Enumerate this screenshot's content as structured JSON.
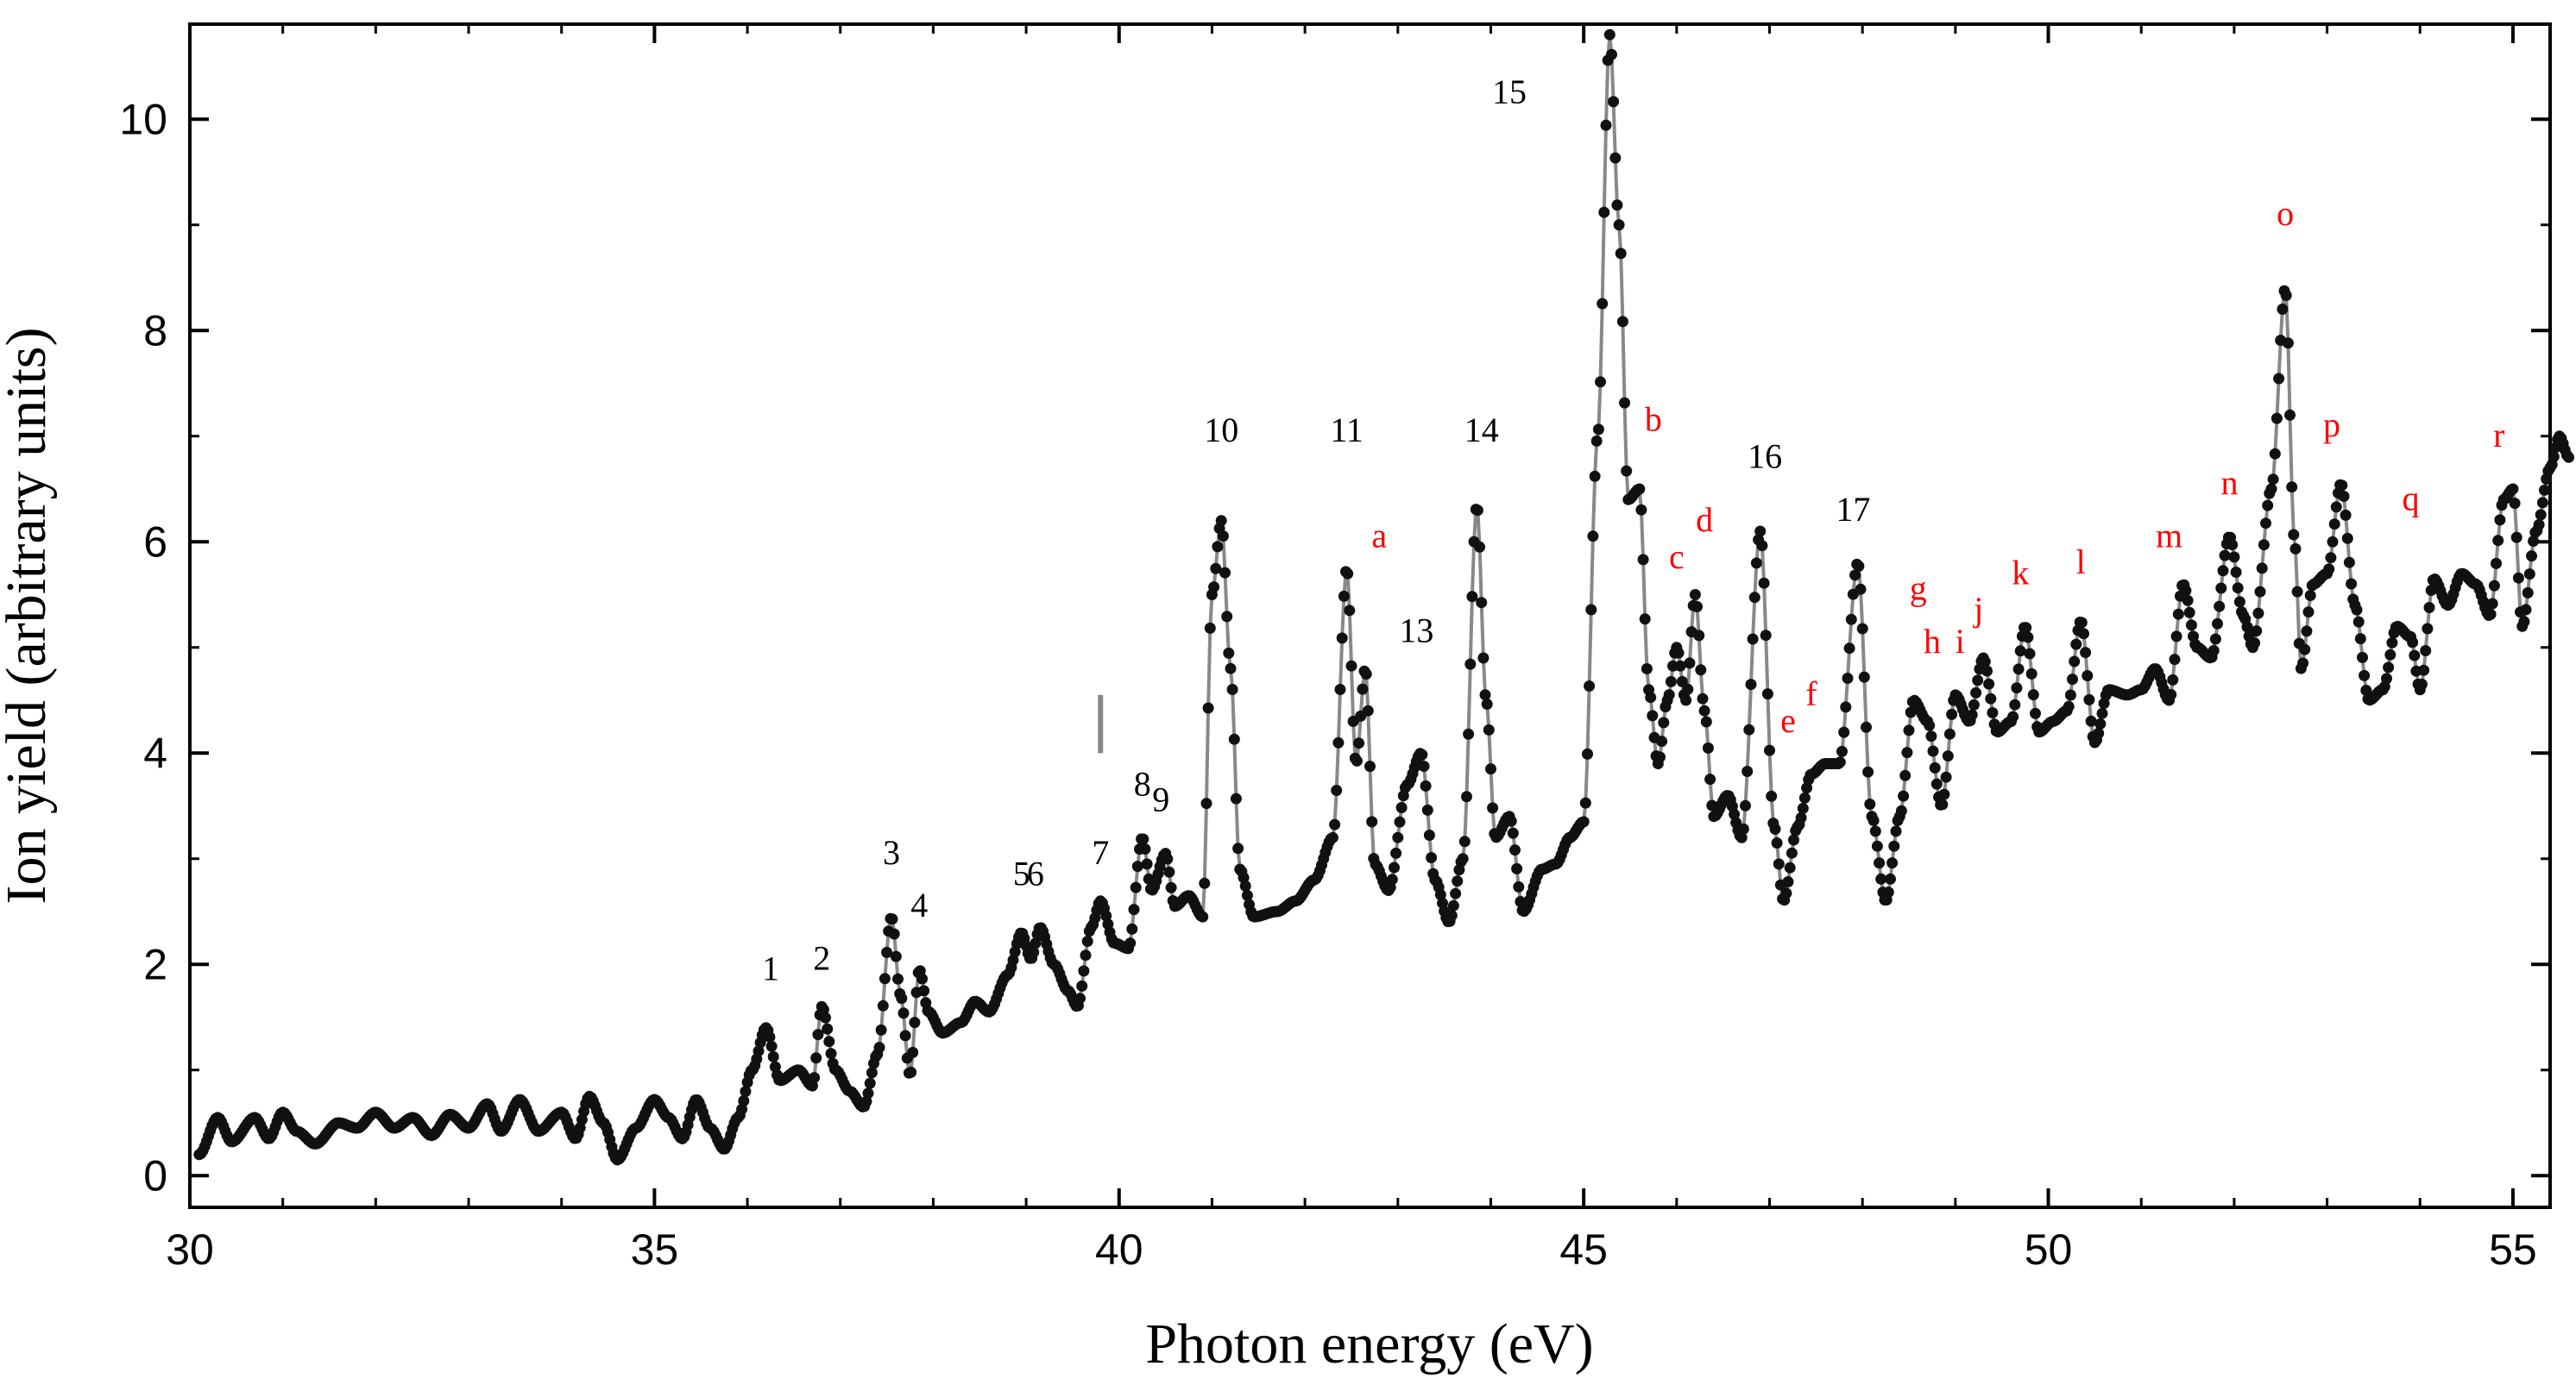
{
  "chart_data": {
    "type": "scatter",
    "xlabel": "Photon energy (eV)",
    "ylabel": "Ion yield (arbitrary units)",
    "xlim": [
      30,
      55.4
    ],
    "ylim": [
      -0.3,
      10.9
    ],
    "x_ticks": [
      30,
      35,
      40,
      45,
      50,
      55
    ],
    "y_ticks": [
      0,
      2,
      4,
      6,
      8,
      10
    ],
    "grid": false,
    "colors": {
      "markers": "#111111",
      "line": "#888888",
      "black_labels": "#000000",
      "red_labels": "#ff0000",
      "marker_line": "#888888"
    },
    "series": [
      {
        "name": "ion yield",
        "keypoints": [
          [
            30.1,
            0.2
          ],
          [
            30.3,
            0.55
          ],
          [
            30.45,
            0.32
          ],
          [
            30.7,
            0.55
          ],
          [
            30.85,
            0.35
          ],
          [
            31.0,
            0.6
          ],
          [
            31.15,
            0.42
          ],
          [
            31.35,
            0.3
          ],
          [
            31.6,
            0.5
          ],
          [
            31.8,
            0.45
          ],
          [
            32.0,
            0.6
          ],
          [
            32.2,
            0.45
          ],
          [
            32.4,
            0.55
          ],
          [
            32.6,
            0.38
          ],
          [
            32.8,
            0.58
          ],
          [
            33.0,
            0.45
          ],
          [
            33.2,
            0.68
          ],
          [
            33.35,
            0.42
          ],
          [
            33.55,
            0.72
          ],
          [
            33.75,
            0.42
          ],
          [
            34.0,
            0.6
          ],
          [
            34.15,
            0.35
          ],
          [
            34.3,
            0.75
          ],
          [
            34.45,
            0.5
          ],
          [
            34.6,
            0.15
          ],
          [
            34.8,
            0.45
          ],
          [
            35.0,
            0.72
          ],
          [
            35.15,
            0.55
          ],
          [
            35.3,
            0.35
          ],
          [
            35.45,
            0.72
          ],
          [
            35.6,
            0.45
          ],
          [
            35.75,
            0.25
          ],
          [
            35.9,
            0.55
          ],
          [
            36.05,
            1.0
          ],
          [
            36.2,
            1.4
          ],
          [
            36.35,
            0.9
          ],
          [
            36.55,
            1.0
          ],
          [
            36.7,
            0.85
          ],
          [
            36.8,
            1.6
          ],
          [
            36.95,
            1.0
          ],
          [
            37.1,
            0.8
          ],
          [
            37.25,
            0.65
          ],
          [
            37.4,
            1.15
          ],
          [
            37.55,
            2.45
          ],
          [
            37.65,
            1.7
          ],
          [
            37.75,
            0.95
          ],
          [
            37.85,
            1.95
          ],
          [
            37.95,
            1.55
          ],
          [
            38.1,
            1.35
          ],
          [
            38.3,
            1.45
          ],
          [
            38.45,
            1.65
          ],
          [
            38.6,
            1.55
          ],
          [
            38.8,
            1.9
          ],
          [
            38.95,
            2.3
          ],
          [
            39.05,
            2.05
          ],
          [
            39.15,
            2.35
          ],
          [
            39.3,
            2.0
          ],
          [
            39.45,
            1.75
          ],
          [
            39.55,
            1.6
          ],
          [
            39.7,
            2.35
          ],
          [
            39.8,
            2.6
          ],
          [
            39.95,
            2.2
          ],
          [
            40.1,
            2.15
          ],
          [
            40.25,
            3.2
          ],
          [
            40.35,
            2.7
          ],
          [
            40.5,
            3.05
          ],
          [
            40.6,
            2.55
          ],
          [
            40.75,
            2.65
          ],
          [
            40.9,
            2.45
          ],
          [
            41.0,
            5.5
          ],
          [
            41.1,
            6.2
          ],
          [
            41.2,
            4.8
          ],
          [
            41.3,
            2.9
          ],
          [
            41.45,
            2.45
          ],
          [
            41.7,
            2.5
          ],
          [
            41.9,
            2.6
          ],
          [
            42.1,
            2.8
          ],
          [
            42.3,
            3.2
          ],
          [
            42.45,
            5.75
          ],
          [
            42.55,
            3.9
          ],
          [
            42.65,
            4.8
          ],
          [
            42.75,
            2.95
          ],
          [
            42.9,
            2.7
          ],
          [
            43.1,
            3.7
          ],
          [
            43.25,
            4.0
          ],
          [
            43.4,
            2.8
          ],
          [
            43.55,
            2.4
          ],
          [
            43.7,
            3.0
          ],
          [
            43.85,
            6.35
          ],
          [
            43.95,
            4.5
          ],
          [
            44.05,
            3.2
          ],
          [
            44.2,
            3.4
          ],
          [
            44.35,
            2.5
          ],
          [
            44.55,
            2.9
          ],
          [
            44.7,
            2.95
          ],
          [
            44.85,
            3.2
          ],
          [
            45.0,
            3.35
          ],
          [
            45.15,
            7.0
          ],
          [
            45.28,
            10.8
          ],
          [
            45.38,
            9.0
          ],
          [
            45.48,
            6.4
          ],
          [
            45.6,
            6.5
          ],
          [
            45.7,
            4.6
          ],
          [
            45.8,
            3.9
          ],
          [
            45.9,
            4.5
          ],
          [
            46.0,
            5.0
          ],
          [
            46.1,
            4.5
          ],
          [
            46.2,
            5.5
          ],
          [
            46.3,
            4.4
          ],
          [
            46.4,
            3.4
          ],
          [
            46.55,
            3.6
          ],
          [
            46.7,
            3.2
          ],
          [
            46.9,
            6.1
          ],
          [
            47.05,
            3.3
          ],
          [
            47.15,
            2.6
          ],
          [
            47.3,
            3.3
          ],
          [
            47.45,
            3.8
          ],
          [
            47.6,
            3.9
          ],
          [
            47.75,
            3.9
          ],
          [
            47.95,
            5.8
          ],
          [
            48.1,
            3.4
          ],
          [
            48.25,
            2.6
          ],
          [
            48.4,
            3.4
          ],
          [
            48.55,
            4.5
          ],
          [
            48.7,
            4.3
          ],
          [
            48.85,
            3.5
          ],
          [
            49.0,
            4.55
          ],
          [
            49.15,
            4.3
          ],
          [
            49.3,
            4.9
          ],
          [
            49.45,
            4.2
          ],
          [
            49.6,
            4.3
          ],
          [
            49.75,
            5.2
          ],
          [
            49.9,
            4.2
          ],
          [
            50.05,
            4.3
          ],
          [
            50.2,
            4.4
          ],
          [
            50.35,
            5.25
          ],
          [
            50.5,
            4.1
          ],
          [
            50.65,
            4.6
          ],
          [
            50.85,
            4.55
          ],
          [
            51.0,
            4.6
          ],
          [
            51.15,
            4.8
          ],
          [
            51.3,
            4.5
          ],
          [
            51.45,
            5.6
          ],
          [
            51.6,
            5.0
          ],
          [
            51.75,
            4.9
          ],
          [
            51.95,
            6.05
          ],
          [
            52.1,
            5.3
          ],
          [
            52.2,
            5.0
          ],
          [
            52.4,
            6.5
          ],
          [
            52.55,
            8.4
          ],
          [
            52.65,
            6.0
          ],
          [
            52.72,
            4.8
          ],
          [
            52.85,
            5.6
          ],
          [
            53.0,
            5.7
          ],
          [
            53.15,
            6.55
          ],
          [
            53.3,
            5.4
          ],
          [
            53.45,
            4.5
          ],
          [
            53.6,
            4.6
          ],
          [
            53.75,
            5.2
          ],
          [
            53.9,
            5.1
          ],
          [
            54.0,
            4.6
          ],
          [
            54.15,
            5.65
          ],
          [
            54.3,
            5.4
          ],
          [
            54.45,
            5.7
          ],
          [
            54.6,
            5.6
          ],
          [
            54.75,
            5.3
          ],
          [
            54.9,
            6.4
          ],
          [
            55.0,
            6.5
          ],
          [
            55.1,
            5.2
          ],
          [
            55.25,
            6.1
          ],
          [
            55.4,
            6.7
          ],
          [
            55.5,
            7.0
          ],
          [
            55.6,
            6.8
          ]
        ]
      }
    ],
    "marker_line": {
      "x": 39.8,
      "y_range": [
        4.0,
        4.55
      ]
    },
    "annotations_black": [
      {
        "text": "1",
        "x": 36.25,
        "y": 1.85
      },
      {
        "text": "2",
        "x": 36.8,
        "y": 1.95
      },
      {
        "text": "3",
        "x": 37.55,
        "y": 2.95
      },
      {
        "text": "4",
        "x": 37.85,
        "y": 2.45
      },
      {
        "text": "5",
        "x": 38.95,
        "y": 2.75
      },
      {
        "text": "6",
        "x": 39.1,
        "y": 2.75
      },
      {
        "text": "7",
        "x": 39.8,
        "y": 2.95
      },
      {
        "text": "8",
        "x": 40.25,
        "y": 3.6
      },
      {
        "text": "9",
        "x": 40.45,
        "y": 3.45
      },
      {
        "text": "10",
        "x": 41.1,
        "y": 6.95
      },
      {
        "text": "11",
        "x": 42.45,
        "y": 6.95
      },
      {
        "text": "13",
        "x": 43.2,
        "y": 5.05
      },
      {
        "text": "14",
        "x": 43.9,
        "y": 6.95
      },
      {
        "text": "15",
        "x": 44.2,
        "y": 10.15
      },
      {
        "text": "16",
        "x": 46.95,
        "y": 6.7
      },
      {
        "text": "17",
        "x": 47.9,
        "y": 6.2
      }
    ],
    "annotations_red": [
      {
        "text": "a",
        "x": 42.8,
        "y": 5.95
      },
      {
        "text": "b",
        "x": 45.75,
        "y": 7.05
      },
      {
        "text": "c",
        "x": 46.0,
        "y": 5.75
      },
      {
        "text": "d",
        "x": 46.3,
        "y": 6.1
      },
      {
        "text": "e",
        "x": 47.2,
        "y": 4.2
      },
      {
        "text": "f",
        "x": 47.45,
        "y": 4.45
      },
      {
        "text": "g",
        "x": 48.6,
        "y": 5.45
      },
      {
        "text": "h",
        "x": 48.75,
        "y": 4.95
      },
      {
        "text": "i",
        "x": 49.05,
        "y": 4.95
      },
      {
        "text": "j",
        "x": 49.25,
        "y": 5.25
      },
      {
        "text": "k",
        "x": 49.7,
        "y": 5.6
      },
      {
        "text": "l",
        "x": 50.35,
        "y": 5.7
      },
      {
        "text": "m",
        "x": 51.3,
        "y": 5.95
      },
      {
        "text": "n",
        "x": 51.95,
        "y": 6.45
      },
      {
        "text": "o",
        "x": 52.55,
        "y": 9.0
      },
      {
        "text": "p",
        "x": 53.05,
        "y": 7.0
      },
      {
        "text": "q",
        "x": 53.9,
        "y": 6.3
      },
      {
        "text": "r",
        "x": 54.85,
        "y": 6.9
      }
    ]
  }
}
